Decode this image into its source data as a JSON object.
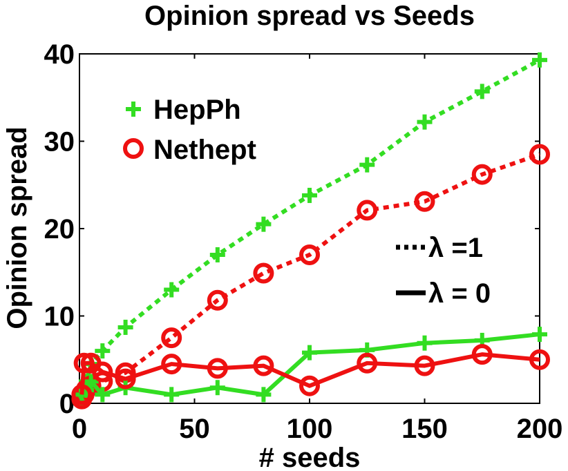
{
  "chart_data": {
    "type": "line",
    "title": "Opinion spread vs Seeds",
    "xlabel": "# seeds",
    "ylabel": "Opinion spread",
    "xlim": [
      0,
      200
    ],
    "ylim": [
      0,
      40
    ],
    "xticks": [
      0,
      50,
      100,
      150,
      200
    ],
    "yticks": [
      0,
      10,
      20,
      30,
      40
    ],
    "x_tick_labels": [
      "0",
      "50",
      "100",
      "150",
      "200"
    ],
    "y_tick_labels": [
      "0",
      "10",
      "20",
      "30",
      "40"
    ],
    "grid": false,
    "legend_placement": "top-left",
    "line_style_legend": {
      "dotted": "λ =1",
      "solid": "λ = 0"
    },
    "series": [
      {
        "name": "HepPh",
        "lambda": "1",
        "color": "#33dd22",
        "marker": "plus",
        "line": "dotted",
        "points": [
          [
            1,
            0.6
          ],
          [
            2,
            1.2
          ],
          [
            3,
            2.5
          ],
          [
            5,
            4.5
          ],
          [
            10,
            6
          ],
          [
            20,
            8.7
          ],
          [
            40,
            13
          ],
          [
            60,
            17
          ],
          [
            80,
            20.5
          ],
          [
            100,
            23.8
          ],
          [
            125,
            27.3
          ],
          [
            150,
            32.2
          ],
          [
            175,
            35.7
          ],
          [
            200,
            39.3
          ]
        ]
      },
      {
        "name": "Nethept",
        "lambda": "1",
        "color": "#ee1111",
        "marker": "circle",
        "line": "dotted",
        "points": [
          [
            1,
            0.5
          ],
          [
            2,
            1.0
          ],
          [
            3,
            1.6
          ],
          [
            5,
            2.0
          ],
          [
            10,
            2.5
          ],
          [
            20,
            3.5
          ],
          [
            40,
            7.5
          ],
          [
            60,
            11.8
          ],
          [
            80,
            14.9
          ],
          [
            100,
            17
          ],
          [
            125,
            22.1
          ],
          [
            150,
            23.1
          ],
          [
            175,
            26.2
          ],
          [
            200,
            28.5
          ]
        ]
      },
      {
        "name": "HepPh",
        "lambda": "0",
        "color": "#33dd22",
        "marker": "plus",
        "line": "solid",
        "points": [
          [
            1,
            1.0
          ],
          [
            3,
            1.5
          ],
          [
            5,
            2.5
          ],
          [
            10,
            1.0
          ],
          [
            20,
            1.8
          ],
          [
            40,
            1.0
          ],
          [
            60,
            1.8
          ],
          [
            80,
            1.0
          ],
          [
            100,
            5.8
          ],
          [
            125,
            6.1
          ],
          [
            150,
            6.9
          ],
          [
            175,
            7.2
          ],
          [
            200,
            7.9
          ]
        ]
      },
      {
        "name": "Nethept",
        "lambda": "0",
        "color": "#ee1111",
        "marker": "circle",
        "line": "solid",
        "points": [
          [
            1,
            1.0
          ],
          [
            2,
            4.6
          ],
          [
            5,
            4.6
          ],
          [
            10,
            3.6
          ],
          [
            20,
            2.8
          ],
          [
            40,
            4.5
          ],
          [
            60,
            4.0
          ],
          [
            80,
            4.3
          ],
          [
            100,
            2.0
          ],
          [
            125,
            4.6
          ],
          [
            150,
            4.3
          ],
          [
            175,
            5.6
          ],
          [
            200,
            5.0
          ]
        ]
      }
    ],
    "legend": [
      {
        "label": "HepPh",
        "color": "#33dd22",
        "marker": "plus"
      },
      {
        "label": "Nethept",
        "color": "#ee1111",
        "marker": "circle"
      }
    ]
  }
}
